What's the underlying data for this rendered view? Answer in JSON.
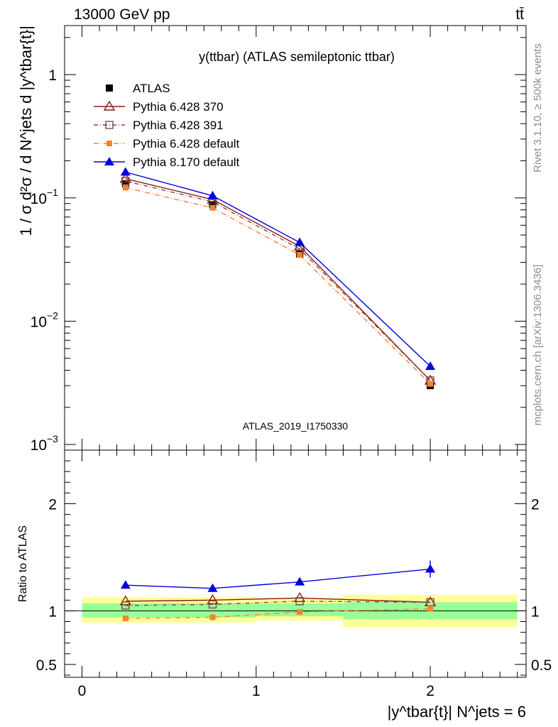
{
  "header": {
    "left": "13000 GeV pp",
    "right": "tt̄"
  },
  "side_labels": {
    "rivet": "Rivet 3.1.10, ≥ 500k events",
    "mcplots": "mcplots.cern.ch [arXiv:1306.3436]"
  },
  "colors": {
    "atlas": "#000000",
    "p370": "#8b1a1a",
    "p391": "#7a4a4a",
    "p6def": "#f58231",
    "p8def": "#0000dd",
    "band_inner": "#99ff99",
    "band_outer": "#ffff99"
  },
  "chart_data": [
    {
      "type": "scatter",
      "title": "y(ttbar) (ATLAS semileptonic ttbar)",
      "watermark": "ATLAS_2019_I1750330",
      "ylabel": "1 / σ d²σ / d N^jets d |y^tbar{t}|",
      "yscale": "log",
      "ylim": [
        0.0009,
        2.5
      ],
      "xlim": [
        -0.1,
        2.55
      ],
      "yticks": [
        {
          "value": 1,
          "label": "1"
        },
        {
          "value": 0.1,
          "label": "10",
          "exp": "−1"
        },
        {
          "value": 0.01,
          "label": "10",
          "exp": "−2"
        },
        {
          "value": 0.001,
          "label": "10",
          "exp": "−3"
        }
      ],
      "x": [
        0.25,
        0.75,
        1.25,
        2.0
      ],
      "x_edges": [
        0.0,
        0.5,
        1.0,
        1.5,
        2.5
      ],
      "series": [
        {
          "name": "ATLAS",
          "key": "atlas",
          "values": [
            0.13,
            0.088,
            0.035,
            0.003
          ]
        },
        {
          "name": "Pythia 6.428 370",
          "key": "p370",
          "values": [
            0.143,
            0.097,
            0.0405,
            0.0033
          ]
        },
        {
          "name": "Pythia 6.428 391",
          "key": "p391",
          "values": [
            0.137,
            0.093,
            0.0385,
            0.0033
          ]
        },
        {
          "name": "Pythia 6.428 default",
          "key": "p6def",
          "values": [
            0.121,
            0.083,
            0.0345,
            0.0031
          ]
        },
        {
          "name": "Pythia 8.170 default",
          "key": "p8def",
          "values": [
            0.162,
            0.104,
            0.0435,
            0.0043
          ]
        }
      ]
    },
    {
      "type": "scatter",
      "ylabel": "Ratio to ATLAS",
      "xlabel": "|y^tbar{t}| N^jets = 6",
      "ylim": [
        0.38,
        2.5
      ],
      "xlim": [
        -0.1,
        2.55
      ],
      "xticks": [
        {
          "value": 0,
          "label": "0"
        },
        {
          "value": 1,
          "label": "1"
        },
        {
          "value": 2,
          "label": "2"
        }
      ],
      "yticks": [
        {
          "value": 0.5,
          "label": "0.5"
        },
        {
          "value": 1,
          "label": "1"
        },
        {
          "value": 2,
          "label": "2"
        }
      ],
      "x": [
        0.25,
        0.75,
        1.25,
        2.0
      ],
      "bands": [
        {
          "x0": 0.0,
          "x1": 1.0,
          "inner": [
            0.94,
            1.07
          ],
          "outer": [
            0.89,
            1.13
          ]
        },
        {
          "x0": 1.0,
          "x1": 1.5,
          "inner": [
            0.95,
            1.07
          ],
          "outer": [
            0.91,
            1.12
          ]
        },
        {
          "x0": 1.5,
          "x1": 2.5,
          "inner": [
            0.92,
            1.08
          ],
          "outer": [
            0.85,
            1.15
          ]
        }
      ],
      "series": [
        {
          "name": "Pythia 6.428 370",
          "key": "p370",
          "values": [
            1.09,
            1.1,
            1.12,
            1.08
          ]
        },
        {
          "name": "Pythia 6.428 391",
          "key": "p391",
          "values": [
            1.05,
            1.06,
            1.09,
            1.08
          ]
        },
        {
          "name": "Pythia 6.428 default",
          "key": "p6def",
          "values": [
            0.93,
            0.94,
            0.99,
            1.02
          ]
        },
        {
          "name": "Pythia 8.170 default",
          "key": "p8def",
          "values": [
            1.24,
            1.21,
            1.27,
            1.39
          ]
        }
      ]
    }
  ]
}
